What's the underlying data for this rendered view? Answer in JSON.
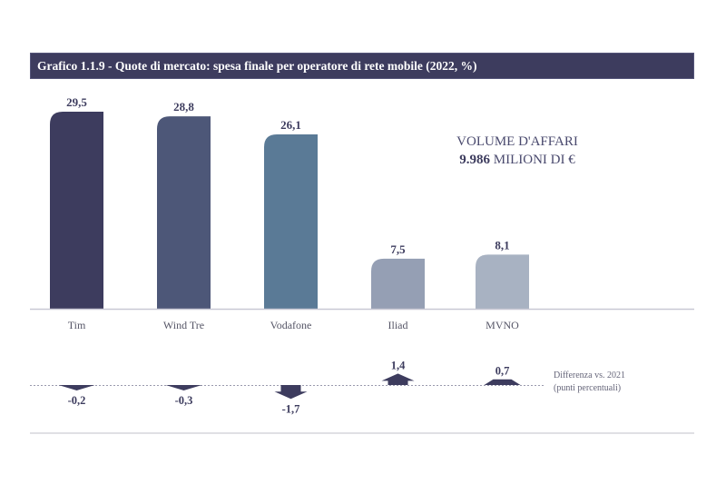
{
  "header": {
    "title": "Grafico 1.1.9 - Quote di mercato: spesa finale per operatore di rete mobile (2022, %)"
  },
  "annotation": {
    "line1": "VOLUME D'AFFARI",
    "value": "9.986",
    "line2_rest": " MILIONI DI €"
  },
  "diff_note": {
    "line1": "Differenza vs. 2021",
    "line2": "(punti percentuali)"
  },
  "colors": {
    "title_bg": "#3d3c5e",
    "label": "#3d3c5e",
    "arrow": "#3d3c5e",
    "axis": "#c8c8d4",
    "category_label": "#555566"
  },
  "chart_data": {
    "type": "bar",
    "title": "Quote di mercato: spesa finale per operatore di rete mobile (2022, %)",
    "xlabel": "",
    "ylabel": "",
    "ylim": [
      0,
      30
    ],
    "grid": false,
    "categories": [
      "Tim",
      "Wind Tre",
      "Vodafone",
      "Iliad",
      "MVNO"
    ],
    "values": [
      29.5,
      28.8,
      26.1,
      7.5,
      8.1
    ],
    "value_labels": [
      "29,5",
      "28,8",
      "26,1",
      "7,5",
      "8,1"
    ],
    "bar_colors": [
      "#3d3c5e",
      "#4d5778",
      "#5a7a96",
      "#959fb4",
      "#a8b2c2"
    ],
    "diff_vs_2021": {
      "label": "Differenza vs. 2021 (punti percentuali)",
      "values": [
        -0.2,
        -0.3,
        -1.7,
        1.4,
        0.7
      ],
      "value_labels": [
        "-0,2",
        "-0,3",
        "-1,7",
        "1,4",
        "0,7"
      ]
    }
  }
}
